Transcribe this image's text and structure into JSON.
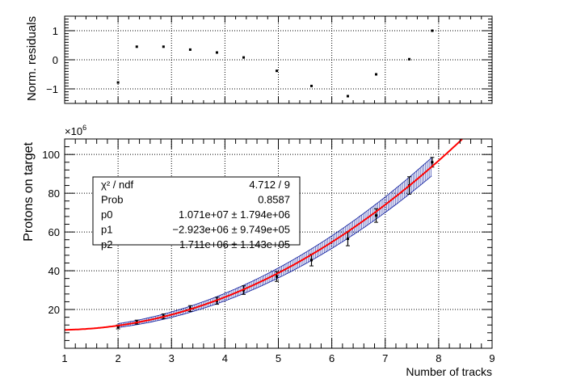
{
  "chart_data": [
    {
      "type": "scatter",
      "name": "residuals",
      "ylabel": "Norm. residuals",
      "xlim": [
        1,
        9
      ],
      "ylim": [
        -1.5,
        1.5
      ],
      "yticks": [
        -1,
        0,
        1
      ],
      "ytick_labels": [
        "−1",
        "0",
        "1"
      ],
      "grid": true,
      "x": [
        2.0,
        2.35,
        2.85,
        3.35,
        3.85,
        4.35,
        4.97,
        5.62,
        6.3,
        6.83,
        7.45,
        7.88
      ],
      "y": [
        -0.78,
        0.45,
        0.45,
        0.35,
        0.25,
        0.08,
        -0.38,
        -0.9,
        -1.25,
        -0.5,
        0.02,
        1.0
      ]
    },
    {
      "type": "scatter",
      "name": "fit",
      "xlabel": "Number of tracks",
      "ylabel": "Protons on target",
      "y_multiplier_label": "×10",
      "y_multiplier_exp": "6",
      "xlim": [
        1,
        9
      ],
      "ylim": [
        0,
        108
      ],
      "xticks": [
        1,
        2,
        3,
        4,
        5,
        6,
        7,
        8,
        9
      ],
      "xtick_labels": [
        "1",
        "2",
        "3",
        "4",
        "5",
        "6",
        "7",
        "8",
        "9"
      ],
      "yticks": [
        20,
        40,
        60,
        80,
        100
      ],
      "ytick_labels": [
        "20",
        "40",
        "60",
        "80",
        "100"
      ],
      "grid": true,
      "points": {
        "x": [
          2.0,
          2.35,
          2.85,
          3.35,
          3.85,
          4.35,
          4.97,
          5.62,
          6.3,
          6.83,
          7.45,
          7.88
        ],
        "y": [
          11.0,
          13.5,
          16.5,
          20.5,
          24.5,
          30.0,
          37.0,
          45.5,
          56.5,
          68.5,
          84.0,
          96.0
        ],
        "yerr": [
          1.0,
          1.0,
          1.2,
          1.5,
          1.8,
          2.2,
          2.5,
          3.0,
          3.6,
          3.5,
          4.5,
          2.5
        ]
      },
      "fit_function": {
        "p0": 10.71,
        "p1": -2.923,
        "p2": 1.711,
        "x_range": [
          1,
          8.45
        ],
        "color": "#ff0000"
      },
      "confidence_band": {
        "x_range": [
          2.0,
          7.88
        ],
        "color": "#0b1a9e"
      },
      "stats_box": {
        "rows": [
          {
            "label": "χ² / ndf",
            "value": "4.712 / 9"
          },
          {
            "label": "Prob",
            "value": "0.8587"
          },
          {
            "label": "p0",
            "value": "1.071e+07 ± 1.794e+06"
          },
          {
            "label": "p1",
            "value": "−2.923e+06 ± 9.749e+05"
          },
          {
            "label": "p2",
            "value": "1.711e+06 ± 1.143e+05"
          }
        ]
      }
    }
  ]
}
